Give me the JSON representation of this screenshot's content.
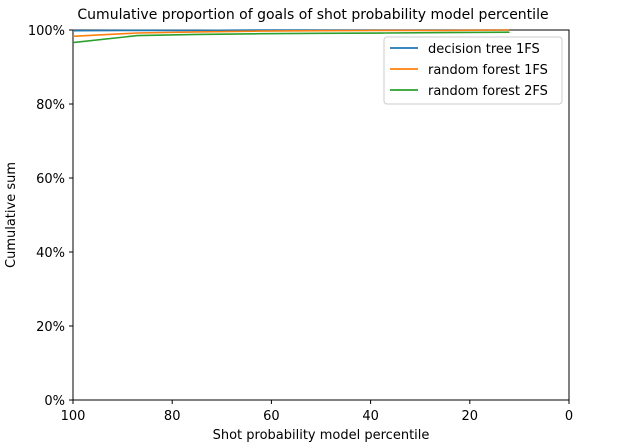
{
  "chart_data": {
    "type": "line",
    "title": "Cumulative proportion of goals of shot probability model percentile",
    "xlabel": "Shot probability model percentile",
    "ylabel": "Cumulative sum",
    "xlim": [
      100,
      0
    ],
    "ylim": [
      0,
      1
    ],
    "x_inverted": true,
    "xticks": [
      100,
      80,
      60,
      40,
      20,
      0
    ],
    "xtick_labels": [
      "100",
      "80",
      "60",
      "40",
      "20",
      "0"
    ],
    "yticks": [
      0,
      0.2,
      0.4,
      0.6,
      0.8,
      1.0
    ],
    "ytick_labels": [
      "0%",
      "20%",
      "40%",
      "60%",
      "80%",
      "100%"
    ],
    "grid": false,
    "legend_position": "top-right",
    "series": [
      {
        "name": "decision tree 1FS",
        "color": "#1f77b4",
        "x": [
          100,
          87,
          75,
          62,
          50,
          37,
          25,
          12
        ],
        "y": [
          0.998,
          0.999,
          0.999,
          1.0,
          1.0,
          1.0,
          1.0,
          1.0
        ]
      },
      {
        "name": "random forest 1FS",
        "color": "#ff7f0e",
        "x": [
          100,
          87,
          75,
          62,
          50,
          37,
          25,
          12
        ],
        "y": [
          0.983,
          0.992,
          0.995,
          0.997,
          0.998,
          0.999,
          0.999,
          1.0
        ]
      },
      {
        "name": "random forest 2FS",
        "color": "#2ca02c",
        "x": [
          100,
          87,
          75,
          62,
          50,
          37,
          25,
          12
        ],
        "y": [
          0.966,
          0.985,
          0.988,
          0.99,
          0.991,
          0.992,
          0.993,
          0.994
        ]
      }
    ]
  }
}
